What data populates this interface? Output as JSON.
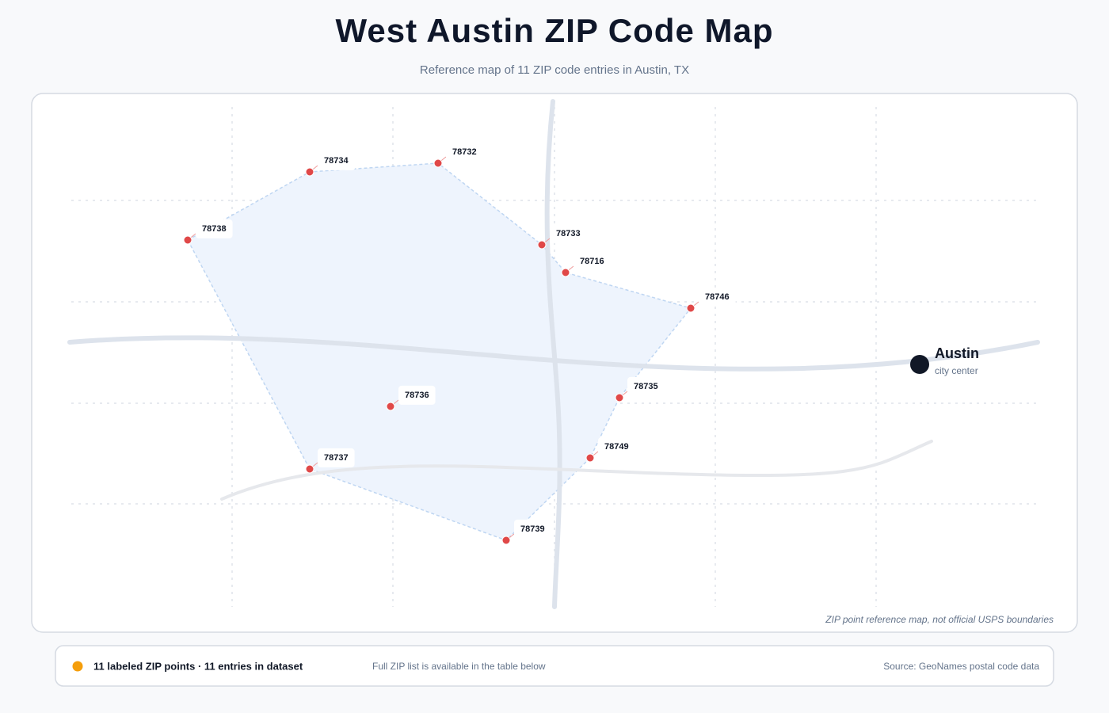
{
  "header": {
    "title": "West Austin ZIP Code Map",
    "subtitle": "Reference map of 11 ZIP code entries in Austin, TX"
  },
  "map": {
    "zips": [
      "78734",
      "78732",
      "78738",
      "78733",
      "78716",
      "78746",
      "78736",
      "78735",
      "78737",
      "78749",
      "78739"
    ],
    "city": {
      "label": "Austin",
      "sublabel": "city center"
    },
    "note": "ZIP point reference map, not official USPS boundaries"
  },
  "footer": {
    "summary": "11 labeled ZIP points · 11 entries in dataset",
    "hint": "Full ZIP list is available in the table below",
    "source": "Source: GeoNames postal code data"
  }
}
